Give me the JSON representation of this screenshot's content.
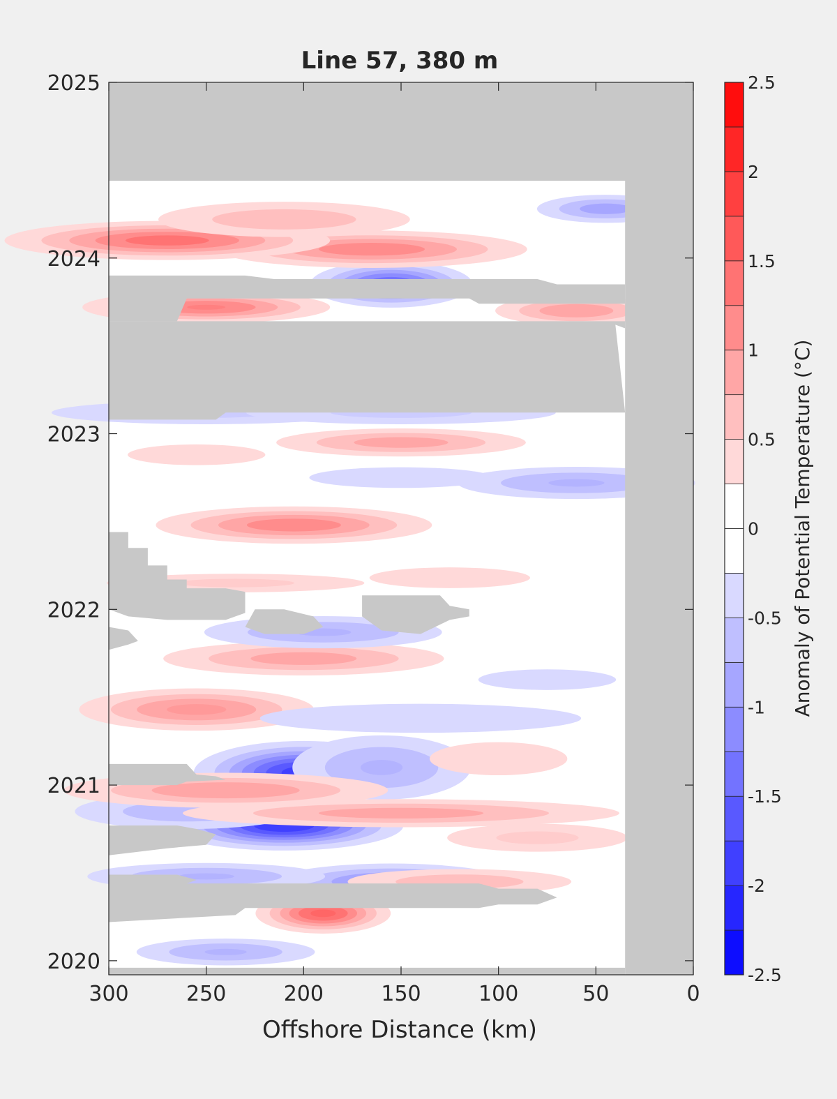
{
  "chart_data": {
    "type": "heatmap",
    "title": "Line 57, 380 m",
    "xlabel": "Offshore Distance (km)",
    "ylabel": "",
    "xlim": [
      300,
      0
    ],
    "ylim": [
      2019.92,
      2025
    ],
    "x_direction": "reversed",
    "x_ticks": [
      300,
      250,
      200,
      150,
      100,
      50,
      0
    ],
    "y_ticks": [
      2020,
      2021,
      2022,
      2023,
      2024,
      2025
    ],
    "colorbar": {
      "label": "Anomaly of Potential Temperature (°C)",
      "range": [
        -2.5,
        2.5
      ],
      "step": 0.25,
      "ticks": [
        -2.5,
        -2,
        -1.5,
        -1,
        -0.5,
        0,
        0.5,
        1,
        1.5,
        2,
        2.5
      ],
      "low_color": "#0000ff",
      "mid_color": "#ffffff",
      "high_color": "#ff0000"
    },
    "no_data_color": "#c8c8c8",
    "colors": {
      "background": "#f0f0f0",
      "axis": "#262626"
    },
    "features": [
      {
        "x": 200,
        "y": 2021.07,
        "sx": 28,
        "sy": 0.09,
        "value": -1.9
      },
      {
        "x": 160,
        "y": 2021.1,
        "sx": 30,
        "sy": 0.12,
        "value": -0.8
      },
      {
        "x": 210,
        "y": 2020.77,
        "sx": 30,
        "sy": 0.07,
        "value": -2.0
      },
      {
        "x": 260,
        "y": 2020.85,
        "sx": 40,
        "sy": 0.07,
        "value": -0.7
      },
      {
        "x": 240,
        "y": 2020.97,
        "sx": 50,
        "sy": 0.06,
        "value": 1.0
      },
      {
        "x": 150,
        "y": 2020.84,
        "sx": 70,
        "sy": 0.05,
        "value": 0.9
      },
      {
        "x": 80,
        "y": 2020.7,
        "sx": 35,
        "sy": 0.06,
        "value": 0.6
      },
      {
        "x": 190,
        "y": 2020.27,
        "sx": 18,
        "sy": 0.06,
        "value": 1.6
      },
      {
        "x": 155,
        "y": 2020.45,
        "sx": 35,
        "sy": 0.06,
        "value": -1.1
      },
      {
        "x": 250,
        "y": 2020.48,
        "sx": 40,
        "sy": 0.05,
        "value": -0.8
      },
      {
        "x": 240,
        "y": 2020.05,
        "sx": 30,
        "sy": 0.05,
        "value": -0.8
      },
      {
        "x": 120,
        "y": 2020.45,
        "sx": 40,
        "sy": 0.05,
        "value": 0.7
      },
      {
        "x": 100,
        "y": 2021.15,
        "sx": 30,
        "sy": 0.08,
        "value": 0.5
      },
      {
        "x": 255,
        "y": 2021.43,
        "sx": 35,
        "sy": 0.07,
        "value": 1.1
      },
      {
        "x": 140,
        "y": 2021.38,
        "sx": 70,
        "sy": 0.07,
        "value": -0.5
      },
      {
        "x": 200,
        "y": 2021.72,
        "sx": 45,
        "sy": 0.06,
        "value": 0.9
      },
      {
        "x": 190,
        "y": 2021.87,
        "sx": 40,
        "sy": 0.06,
        "value": -0.8
      },
      {
        "x": 75,
        "y": 2021.6,
        "sx": 30,
        "sy": 0.05,
        "value": -0.5
      },
      {
        "x": 235,
        "y": 2022.15,
        "sx": 50,
        "sy": 0.04,
        "value": 0.6
      },
      {
        "x": 125,
        "y": 2022.18,
        "sx": 35,
        "sy": 0.05,
        "value": 0.5
      },
      {
        "x": 205,
        "y": 2022.48,
        "sx": 40,
        "sy": 0.06,
        "value": 1.2
      },
      {
        "x": 60,
        "y": 2022.72,
        "sx": 40,
        "sy": 0.06,
        "value": -0.8
      },
      {
        "x": 150,
        "y": 2022.75,
        "sx": 40,
        "sy": 0.05,
        "value": -0.5
      },
      {
        "x": 255,
        "y": 2022.88,
        "sx": 30,
        "sy": 0.05,
        "value": 0.5
      },
      {
        "x": 150,
        "y": 2022.95,
        "sx": 40,
        "sy": 0.05,
        "value": 0.9
      },
      {
        "x": 250,
        "y": 2023.12,
        "sx": 60,
        "sy": 0.05,
        "value": -0.6
      },
      {
        "x": 150,
        "y": 2023.12,
        "sx": 60,
        "sy": 0.05,
        "value": -0.6
      },
      {
        "x": 250,
        "y": 2023.72,
        "sx": 35,
        "sy": 0.05,
        "value": 1.3
      },
      {
        "x": 60,
        "y": 2023.7,
        "sx": 25,
        "sy": 0.05,
        "value": 1.0
      },
      {
        "x": 155,
        "y": 2023.85,
        "sx": 22,
        "sy": 0.07,
        "value": -1.5
      },
      {
        "x": 165,
        "y": 2024.05,
        "sx": 45,
        "sy": 0.06,
        "value": 1.2
      },
      {
        "x": 270,
        "y": 2024.1,
        "sx": 45,
        "sy": 0.06,
        "value": 1.4
      },
      {
        "x": 210,
        "y": 2024.22,
        "sx": 45,
        "sy": 0.07,
        "value": 0.7
      },
      {
        "x": 45,
        "y": 2024.28,
        "sx": 22,
        "sy": 0.05,
        "value": -0.9
      }
    ],
    "no_data_regions": [
      [
        [
          300,
          2025
        ],
        [
          0,
          2025
        ],
        [
          0,
          2019.92
        ],
        [
          35,
          2019.92
        ],
        [
          35,
          2024.44
        ],
        [
          300,
          2024.44
        ]
      ],
      [
        [
          300,
          2019.92
        ],
        [
          35,
          2019.92
        ],
        [
          35,
          2019.96
        ],
        [
          300,
          2019.96
        ]
      ],
      [
        [
          300,
          2023.9
        ],
        [
          230,
          2023.9
        ],
        [
          215,
          2023.88
        ],
        [
          80,
          2023.88
        ],
        [
          70,
          2023.85
        ],
        [
          35,
          2023.85
        ],
        [
          35,
          2023.74
        ],
        [
          110,
          2023.74
        ],
        [
          115,
          2023.77
        ],
        [
          260,
          2023.77
        ],
        [
          265,
          2023.64
        ],
        [
          300,
          2023.64
        ]
      ],
      [
        [
          300,
          2023.64
        ],
        [
          35,
          2023.64
        ],
        [
          35,
          2023.6
        ],
        [
          40,
          2023.62
        ],
        [
          35,
          2023.12
        ],
        [
          240,
          2023.12
        ],
        [
          245,
          2023.08
        ],
        [
          300,
          2023.08
        ]
      ],
      [
        [
          300,
          2022.44
        ],
        [
          290,
          2022.44
        ],
        [
          290,
          2022.35
        ],
        [
          280,
          2022.35
        ],
        [
          280,
          2022.25
        ],
        [
          270,
          2022.25
        ],
        [
          270,
          2022.17
        ],
        [
          260,
          2022.17
        ],
        [
          260,
          2022.12
        ],
        [
          240,
          2022.12
        ],
        [
          230,
          2022.1
        ],
        [
          230,
          2021.98
        ],
        [
          240,
          2021.94
        ],
        [
          270,
          2021.94
        ],
        [
          290,
          2021.96
        ],
        [
          300,
          2022.0
        ]
      ],
      [
        [
          300,
          2021.9
        ],
        [
          290,
          2021.88
        ],
        [
          285,
          2021.82
        ],
        [
          290,
          2021.8
        ],
        [
          300,
          2021.77
        ]
      ],
      [
        [
          230,
          2021.9
        ],
        [
          220,
          2021.86
        ],
        [
          200,
          2021.86
        ],
        [
          190,
          2021.9
        ],
        [
          195,
          2021.96
        ],
        [
          210,
          2022.0
        ],
        [
          225,
          2022.0
        ]
      ],
      [
        [
          170,
          2022.08
        ],
        [
          130,
          2022.08
        ],
        [
          125,
          2022.02
        ],
        [
          115,
          2022.0
        ],
        [
          115,
          2021.96
        ],
        [
          125,
          2021.94
        ],
        [
          140,
          2021.86
        ],
        [
          160,
          2021.88
        ],
        [
          170,
          2021.96
        ]
      ],
      [
        [
          300,
          2021.12
        ],
        [
          260,
          2021.12
        ],
        [
          255,
          2021.06
        ],
        [
          245,
          2021.05
        ],
        [
          240,
          2021.03
        ],
        [
          260,
          2021.02
        ],
        [
          265,
          2021.0
        ],
        [
          300,
          2021.0
        ]
      ],
      [
        [
          300,
          2020.77
        ],
        [
          265,
          2020.77
        ],
        [
          255,
          2020.75
        ],
        [
          245,
          2020.72
        ],
        [
          250,
          2020.66
        ],
        [
          270,
          2020.64
        ],
        [
          300,
          2020.6
        ]
      ],
      [
        [
          300,
          2020.49
        ],
        [
          265,
          2020.49
        ],
        [
          255,
          2020.46
        ],
        [
          260,
          2020.44
        ],
        [
          110,
          2020.44
        ],
        [
          100,
          2020.41
        ],
        [
          80,
          2020.41
        ],
        [
          70,
          2020.36
        ],
        [
          80,
          2020.32
        ],
        [
          100,
          2020.32
        ],
        [
          110,
          2020.3
        ],
        [
          230,
          2020.3
        ],
        [
          235,
          2020.26
        ],
        [
          300,
          2020.22
        ]
      ]
    ]
  }
}
